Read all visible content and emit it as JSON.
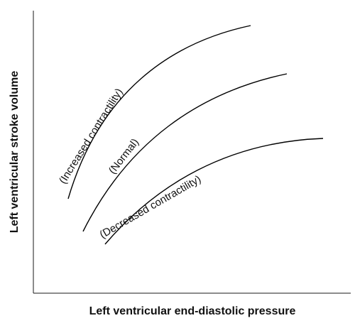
{
  "axes": {
    "x_label": "Left ventricular end-diastolic pressure",
    "y_label": "Left ventricular stroke volume"
  },
  "curves": [
    {
      "id": "increased",
      "label": "(Increased contractility)"
    },
    {
      "id": "normal",
      "label": "(Normal)"
    },
    {
      "id": "decreased",
      "label": "(Decreased contractility)"
    }
  ]
}
